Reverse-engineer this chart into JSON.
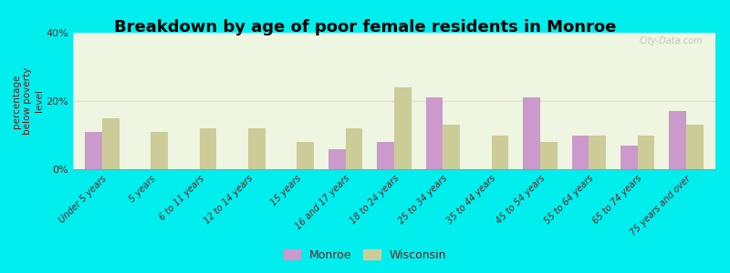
{
  "title": "Breakdown by age of poor female residents in Monroe",
  "ylabel": "percentage\nbelow poverty\nlevel",
  "categories": [
    "Under 5 years",
    "5 years",
    "6 to 11 years",
    "12 to 14 years",
    "15 years",
    "16 and 17 years",
    "18 to 24 years",
    "25 to 34 years",
    "35 to 44 years",
    "45 to 54 years",
    "55 to 64 years",
    "65 to 74 years",
    "75 years and over"
  ],
  "monroe_values": [
    11,
    0,
    0,
    0,
    0,
    6,
    8,
    21,
    0,
    21,
    10,
    7,
    17
  ],
  "wisconsin_values": [
    15,
    11,
    12,
    12,
    8,
    12,
    24,
    13,
    10,
    8,
    10,
    10,
    13
  ],
  "monroe_color": "#cc99cc",
  "wisconsin_color": "#cccc99",
  "background_color": "#00eeee",
  "plot_bg": "#eef5e0",
  "ylim": [
    0,
    40
  ],
  "yticks": [
    0,
    20,
    40
  ],
  "ytick_labels": [
    "0%",
    "20%",
    "40%"
  ],
  "bar_width": 0.35,
  "legend_monroe": "Monroe",
  "legend_wisconsin": "Wisconsin",
  "watermark": "City-Data.com",
  "title_fontsize": 13,
  "axis_label_fontsize": 8
}
